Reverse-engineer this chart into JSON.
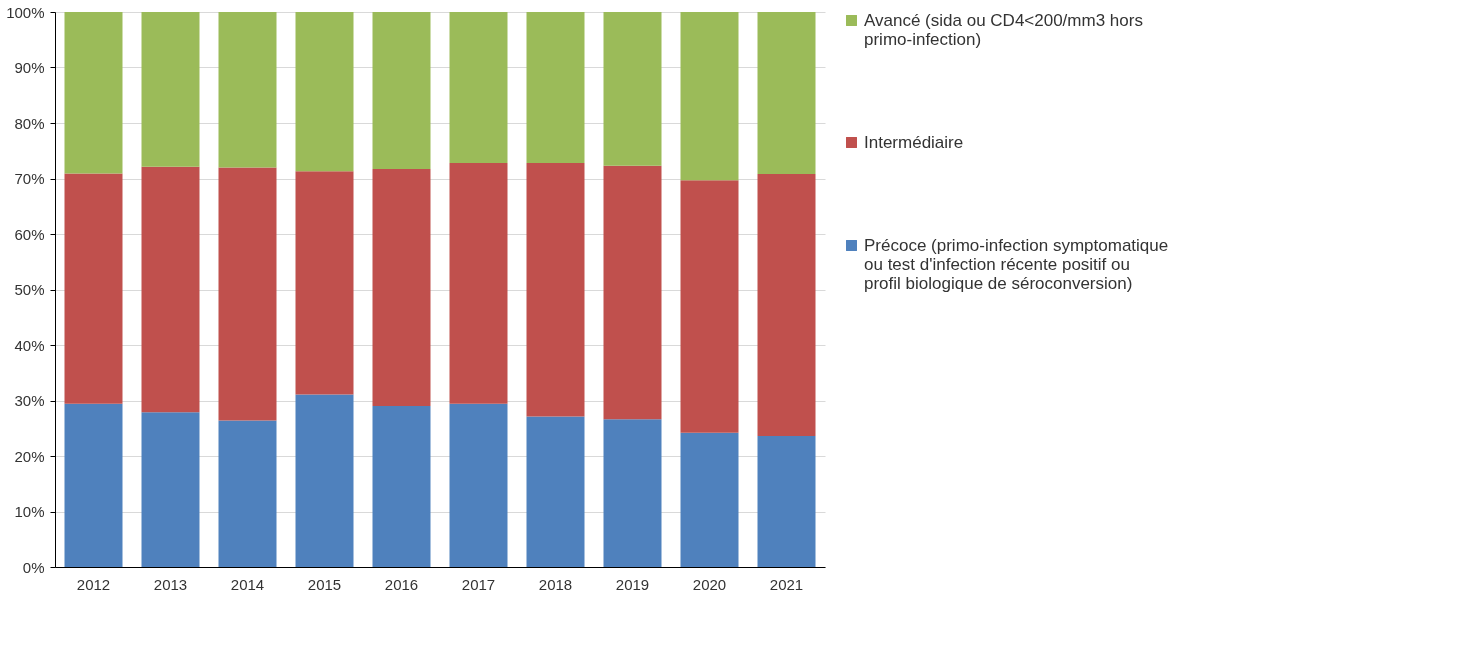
{
  "chart_data": {
    "type": "bar",
    "stacked": true,
    "categories": [
      "2012",
      "2013",
      "2014",
      "2015",
      "2016",
      "2017",
      "2018",
      "2019",
      "2020",
      "2021"
    ],
    "series": [
      {
        "name": "Précoce (primo-infection symptomatique ou test d'infection récente positif ou profil biologique de séroconversion)",
        "color": "#4f81bd",
        "values": [
          29.4,
          27.9,
          26.4,
          31.1,
          29.0,
          29.4,
          27.1,
          26.6,
          24.2,
          23.6
        ]
      },
      {
        "name": "Intermédiaire",
        "color": "#c0504d",
        "values": [
          41.5,
          44.2,
          45.6,
          40.2,
          42.7,
          43.4,
          45.7,
          45.7,
          45.5,
          47.2
        ]
      },
      {
        "name": "Avancé (sida ou CD4<200/mm3 hors primo-infection)",
        "color": "#9bbb59",
        "values": [
          29.1,
          27.9,
          28.0,
          28.7,
          28.3,
          27.2,
          27.2,
          27.7,
          30.3,
          29.2
        ]
      }
    ],
    "ylim": [
      0,
      100
    ],
    "yticks": [
      {
        "value": 0,
        "label": "0%"
      },
      {
        "value": 10,
        "label": "10%"
      },
      {
        "value": 20,
        "label": "20%"
      },
      {
        "value": 30,
        "label": "30%"
      },
      {
        "value": 40,
        "label": "40%"
      },
      {
        "value": 50,
        "label": "50%"
      },
      {
        "value": 60,
        "label": "60%"
      },
      {
        "value": 70,
        "label": "70%"
      },
      {
        "value": 80,
        "label": "80%"
      },
      {
        "value": 90,
        "label": "90%"
      },
      {
        "value": 100,
        "label": "100%"
      }
    ],
    "grid": "y",
    "legend": "right"
  }
}
